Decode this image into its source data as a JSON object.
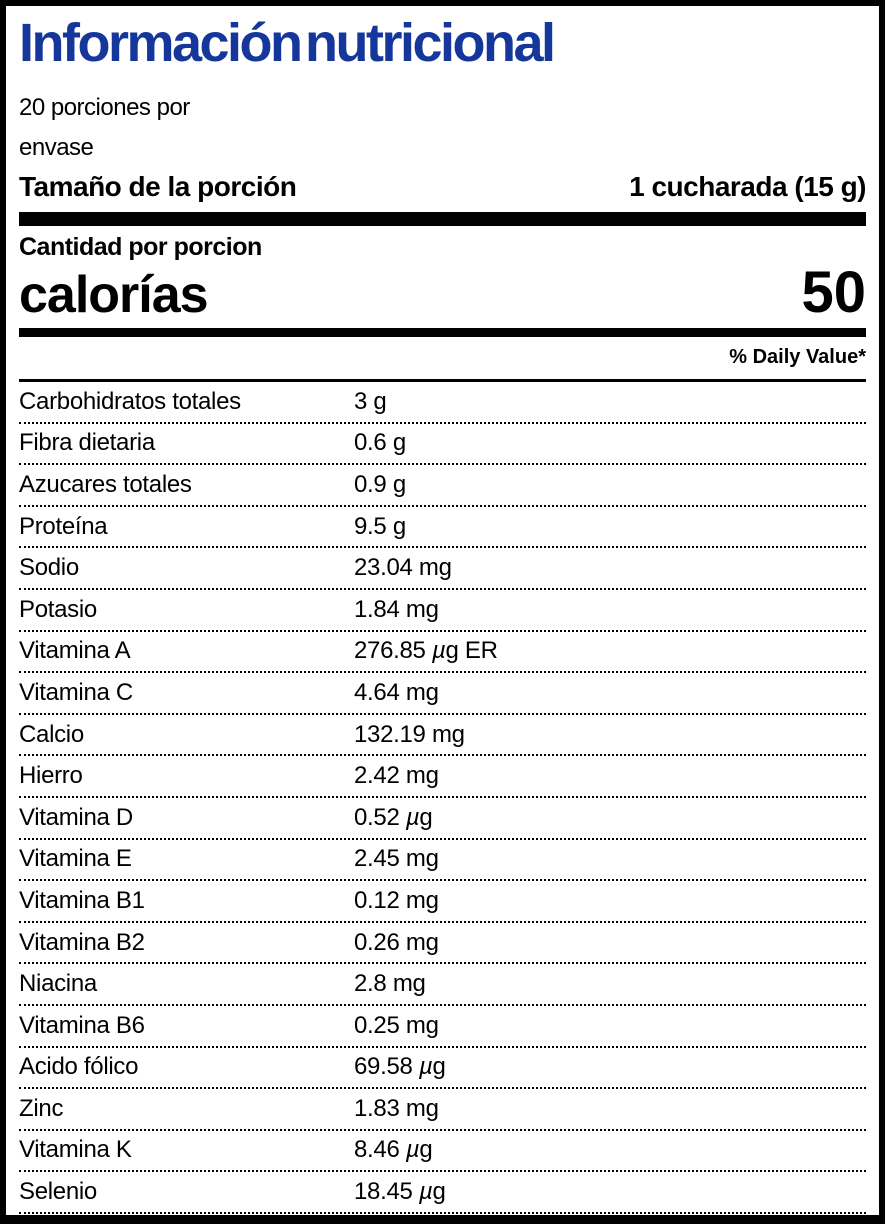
{
  "label": {
    "title": "Información nutricional",
    "title_color": "#15379b",
    "servings_line1": "20 porciones por",
    "servings_line2": "envase",
    "serving_size_label": "Tamaño de la porción",
    "serving_size_value": "1 cucharada (15 g)",
    "amount_per_serving": "Cantidad por porcion",
    "calories_label": "calorías",
    "calories_value": "50",
    "daily_value_header": "% Daily Value*",
    "rows": [
      {
        "name": "Carbohidratos totales",
        "value": "3 g"
      },
      {
        "name": "Fibra dietaria",
        "value": "0.6 g"
      },
      {
        "name": "Azucares totales",
        "value": "0.9 g"
      },
      {
        "name": "Proteína",
        "value": "9.5 g"
      },
      {
        "name": "Sodio",
        "value": "23.04 mg"
      },
      {
        "name": "Potasio",
        "value": "1.84 mg"
      },
      {
        "name": "Vitamina A",
        "value": "276.85 µg ER"
      },
      {
        "name": "Vitamina C",
        "value": "4.64 mg"
      },
      {
        "name": "Calcio",
        "value": "132.19 mg"
      },
      {
        "name": "Hierro",
        "value": "2.42 mg"
      },
      {
        "name": "Vitamina D",
        "value": "0.52 µg"
      },
      {
        "name": "Vitamina E",
        "value": "2.45 mg"
      },
      {
        "name": "Vitamina B1",
        "value": "0.12 mg"
      },
      {
        "name": "Vitamina B2",
        "value": "0.26 mg"
      },
      {
        "name": "Niacina",
        "value": "2.8 mg"
      },
      {
        "name": "Vitamina B6",
        "value": "0.25 mg"
      },
      {
        "name": "Acido fólico",
        "value": "69.58 µg"
      },
      {
        "name": "Zinc",
        "value": "1.83 mg"
      },
      {
        "name": "Vitamina K",
        "value": "8.46 µg"
      },
      {
        "name": "Selenio",
        "value": "18.45 µg"
      }
    ]
  }
}
